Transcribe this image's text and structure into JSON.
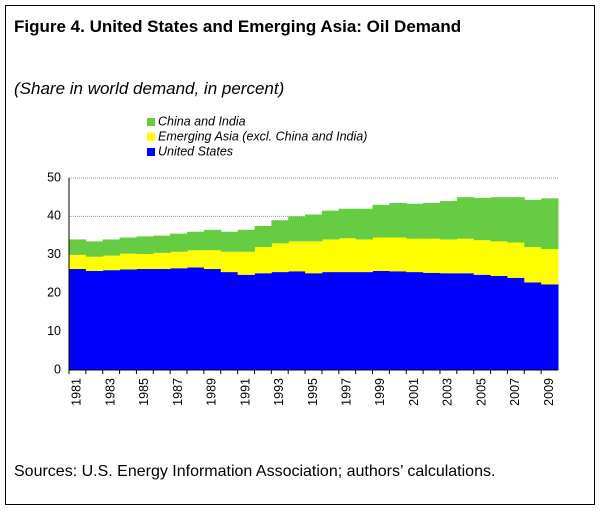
{
  "chart_data": {
    "type": "stacked-area",
    "title": "Figure 4. United States and Emerging Asia: Oil Demand",
    "subtitle": "(Share in world demand, in percent)",
    "source": "Sources: U.S. Energy Information Association; authors’ calculations.",
    "categories": [
      "1981",
      null,
      "1983",
      null,
      "1985",
      null,
      "1987",
      null,
      "1989",
      null,
      "1991",
      null,
      "1993",
      null,
      "1995",
      null,
      "1997",
      null,
      "1999",
      null,
      "2001",
      null,
      "2003",
      null,
      "2005",
      null,
      "2007",
      null,
      "2009"
    ],
    "series": [
      {
        "name": "United States",
        "color": "#0000ff",
        "values": [
          26.3,
          25.8,
          26,
          26.2,
          26.3,
          26.3,
          26.5,
          26.7,
          26.3,
          25.5,
          24.8,
          25.2,
          25.5,
          25.7,
          25.2,
          25.5,
          25.5,
          25.5,
          25.8,
          25.7,
          25.5,
          25.3,
          25.2,
          25.2,
          24.8,
          24.5,
          24,
          22.8,
          22.3
        ]
      },
      {
        "name": "Emerging Asia (excl. China and India)",
        "color": "#ffff00",
        "values": [
          3.7,
          3.7,
          3.8,
          4.1,
          3.9,
          4.2,
          4.3,
          4.5,
          4.9,
          5.3,
          6.0,
          6.8,
          7.5,
          7.8,
          8.3,
          8.5,
          8.8,
          8.5,
          8.7,
          8.8,
          8.7,
          8.9,
          8.8,
          9.0,
          9.0,
          9.0,
          9.2,
          9.2,
          9.2
        ]
      },
      {
        "name": "China and India",
        "color": "#66cc44",
        "values": [
          4,
          4,
          4.2,
          4.2,
          4.6,
          4.5,
          4.7,
          4.8,
          5.3,
          5.2,
          5.7,
          5.5,
          6,
          6.5,
          7,
          7.5,
          7.7,
          8,
          8.5,
          9,
          9.1,
          9.3,
          10,
          10.8,
          11,
          11.5,
          11.8,
          12.3,
          13.2
        ]
      }
    ],
    "ylim": [
      0,
      50
    ],
    "yticks": [
      0,
      10,
      20,
      30,
      40,
      50
    ],
    "grid": true
  }
}
